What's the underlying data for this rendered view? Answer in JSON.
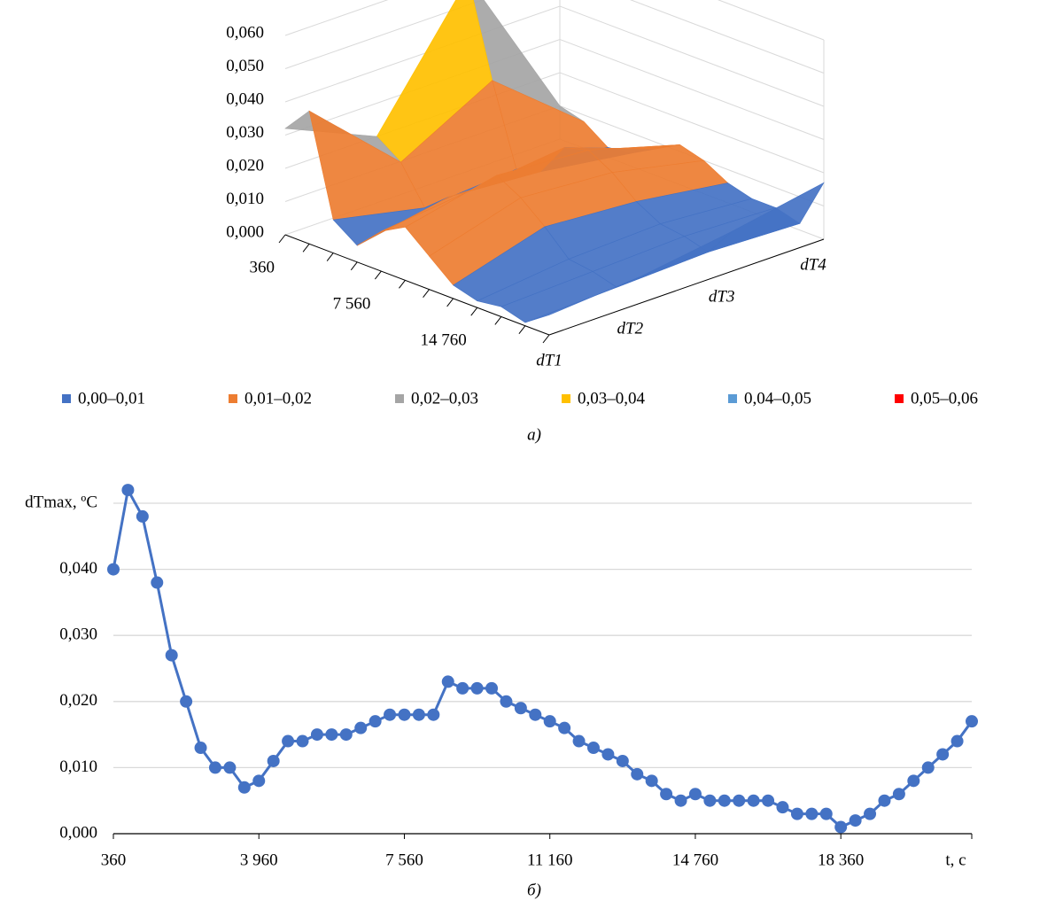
{
  "chart_data": [
    {
      "type": "surface",
      "categories": [
        "360",
        null,
        null,
        null,
        "7 560",
        null,
        null,
        null,
        "14 760",
        null,
        null,
        null
      ],
      "series": [
        {
          "name": "dT1",
          "values": [
            0.032,
            0.04,
            0.01,
            0.005,
            0.012,
            0.016,
            0.01,
            0.004,
            0.002,
            0.003,
            0.001,
            0.006
          ]
        },
        {
          "name": "dT2",
          "values": [
            0.02,
            0.015,
            0.004,
            0.01,
            0.015,
            0.022,
            0.018,
            0.012,
            0.005,
            0.004,
            0.002,
            0.008
          ]
        },
        {
          "name": "dT3",
          "values": [
            0.058,
            0.03,
            0.006,
            0.008,
            0.018,
            0.02,
            0.016,
            0.01,
            0.006,
            0.005,
            0.003,
            0.012
          ]
        },
        {
          "name": "dT4",
          "values": [
            0.01,
            0.008,
            0.003,
            0.004,
            0.008,
            0.012,
            0.01,
            0.006,
            0.004,
            0.004,
            0.002,
            0.017
          ]
        }
      ],
      "zlim": [
        0,
        0.06
      ],
      "zticks": [
        {
          "value": 0,
          "label": "0,000"
        },
        {
          "value": 0.01,
          "label": "0,010"
        },
        {
          "value": 0.02,
          "label": "0,020"
        },
        {
          "value": 0.03,
          "label": "0,030"
        },
        {
          "value": 0.04,
          "label": "0,040"
        },
        {
          "value": 0.05,
          "label": "0,050"
        },
        {
          "value": 0.06,
          "label": "0,060"
        }
      ],
      "legend": [
        {
          "name": "0,00–0,01",
          "color": "#4472c4",
          "range": [
            0,
            0.01
          ]
        },
        {
          "name": "0,01–0,02",
          "color": "#ed7d31",
          "range": [
            0.01,
            0.02
          ]
        },
        {
          "name": "0,02–0,03",
          "color": "#a5a5a5",
          "range": [
            0.02,
            0.03
          ]
        },
        {
          "name": "0,03–0,04",
          "color": "#ffc000",
          "range": [
            0.03,
            0.04
          ]
        },
        {
          "name": "0,04–0,05",
          "color": "#5b9bd5",
          "range": [
            0.04,
            0.05
          ]
        },
        {
          "name": "0,05–0,06",
          "color": "#ff0000",
          "range": [
            0.05,
            0.06
          ]
        }
      ],
      "caption": "а)"
    },
    {
      "type": "line",
      "categories": [
        "360",
        null,
        null,
        null,
        null,
        null,
        null,
        null,
        null,
        null,
        "3 960",
        null,
        null,
        null,
        null,
        null,
        null,
        null,
        null,
        null,
        "7 560",
        null,
        null,
        null,
        null,
        null,
        null,
        null,
        null,
        null,
        "11 160",
        null,
        null,
        null,
        null,
        null,
        null,
        null,
        null,
        null,
        "14 760",
        null,
        null,
        null,
        null,
        null,
        null,
        null,
        null,
        null,
        "18 360",
        null,
        null,
        null,
        null,
        null,
        null,
        null,
        null,
        null
      ],
      "series": [
        {
          "name": "dTmax",
          "color": "#4472c4",
          "values": [
            0.04,
            0.052,
            0.048,
            0.038,
            0.027,
            0.02,
            0.013,
            0.01,
            0.01,
            0.007,
            0.008,
            0.011,
            0.014,
            0.014,
            0.015,
            0.015,
            0.015,
            0.016,
            0.017,
            0.018,
            0.018,
            0.018,
            0.018,
            0.023,
            0.022,
            0.022,
            0.022,
            0.02,
            0.019,
            0.018,
            0.017,
            0.016,
            0.014,
            0.013,
            0.012,
            0.011,
            0.009,
            0.008,
            0.006,
            0.005,
            0.006,
            0.005,
            0.005,
            0.005,
            0.005,
            0.005,
            0.004,
            0.003,
            0.003,
            0.003,
            0.001,
            0.002,
            0.003,
            0.005,
            0.006,
            0.008,
            0.01,
            0.012,
            0.014,
            0.017
          ]
        }
      ],
      "ylim": [
        0,
        0.05
      ],
      "yticks": [
        {
          "value": 0,
          "label": "0,000"
        },
        {
          "value": 0.01,
          "label": "0,010"
        },
        {
          "value": 0.02,
          "label": "0,020"
        },
        {
          "value": 0.03,
          "label": "0,030"
        },
        {
          "value": 0.04,
          "label": "0,040"
        },
        {
          "value": 0.05,
          "label": "dTmax, ºC"
        }
      ],
      "xlabel": "t, c",
      "grid": true,
      "caption": "б)"
    }
  ]
}
